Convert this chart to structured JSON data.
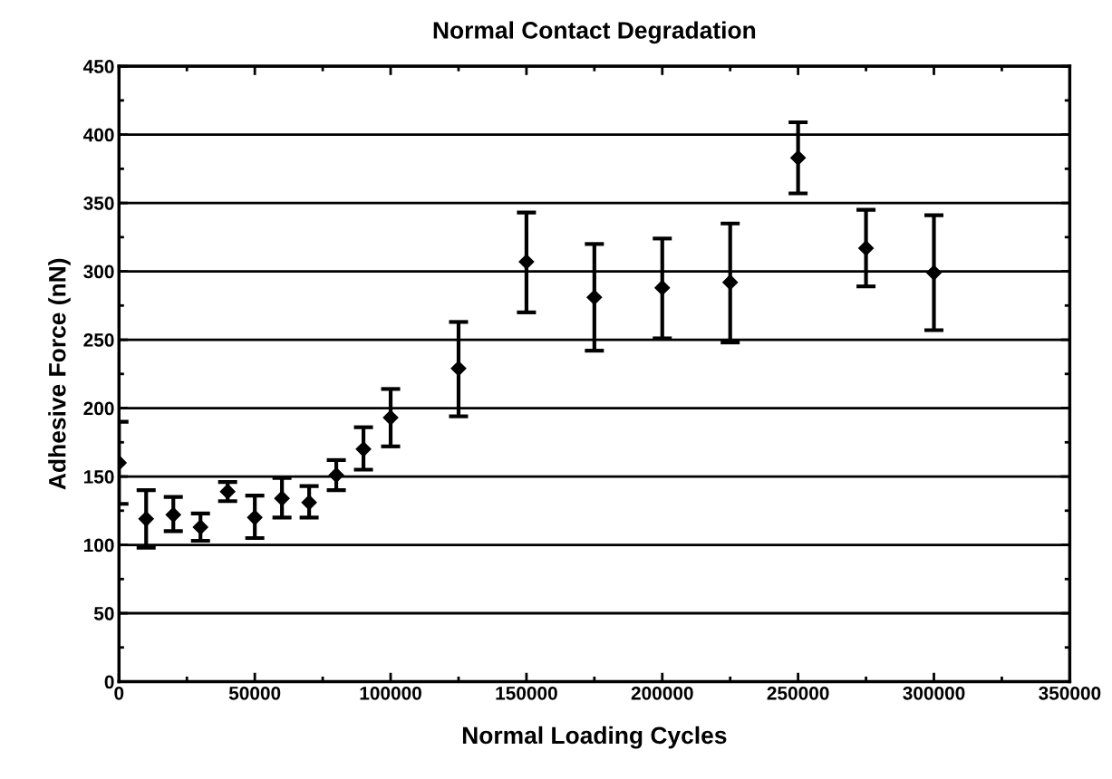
{
  "chart_data": {
    "type": "scatter",
    "title": "Normal Contact Degradation",
    "xlabel": "Normal Loading Cycles",
    "ylabel": "Adhesive Force (nN)",
    "x": [
      0,
      10000,
      20000,
      30000,
      40000,
      50000,
      60000,
      70000,
      80000,
      90000,
      100000,
      125000,
      150000,
      175000,
      200000,
      225000,
      250000,
      275000,
      300000
    ],
    "series": [
      {
        "color": "#000000",
        "values": [
          160,
          119,
          122,
          113,
          139,
          120,
          134,
          131,
          151,
          170,
          193,
          229,
          307,
          281,
          288,
          292,
          383,
          317,
          299
        ],
        "errors": [
          [
            130,
            190
          ],
          [
            98,
            140
          ],
          [
            110,
            135
          ],
          [
            103,
            123
          ],
          [
            132,
            146
          ],
          [
            105,
            136
          ],
          [
            120,
            149
          ],
          [
            120,
            143
          ],
          [
            140,
            162
          ],
          [
            155,
            186
          ],
          [
            172,
            214
          ],
          [
            194,
            263
          ],
          [
            270,
            343
          ],
          [
            242,
            320
          ],
          [
            251,
            324
          ],
          [
            248,
            335
          ],
          [
            357,
            409
          ],
          [
            289,
            345
          ],
          [
            257,
            341
          ]
        ]
      }
    ],
    "xlim": [
      0,
      350000
    ],
    "xticks": [
      0,
      50000,
      100000,
      150000,
      200000,
      250000,
      300000,
      350000
    ],
    "ylim": [
      0,
      450
    ],
    "yticks": [
      0,
      50,
      100,
      150,
      200,
      250,
      300,
      350,
      400,
      450
    ],
    "grid": "y",
    "marker": "diamond"
  }
}
